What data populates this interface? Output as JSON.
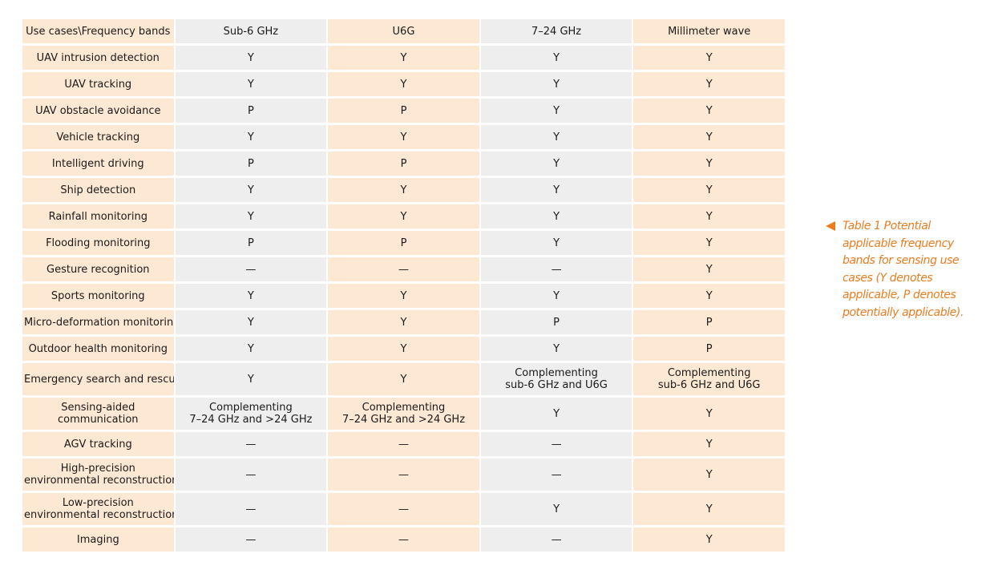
{
  "table": {
    "header": [
      "Use cases\\Frequency bands",
      "Sub-6 GHz",
      "U6G",
      "7–24 GHz",
      "Millimeter wave"
    ],
    "rows": [
      {
        "cells": [
          "UAV intrusion detection",
          "Y",
          "Y",
          "Y",
          "Y"
        ]
      },
      {
        "cells": [
          "UAV tracking",
          "Y",
          "Y",
          "Y",
          "Y"
        ]
      },
      {
        "cells": [
          "UAV obstacle avoidance",
          "P",
          "P",
          "Y",
          "Y"
        ]
      },
      {
        "cells": [
          "Vehicle tracking",
          "Y",
          "Y",
          "Y",
          "Y"
        ]
      },
      {
        "cells": [
          "Intelligent driving",
          "P",
          "P",
          "Y",
          "Y"
        ]
      },
      {
        "cells": [
          "Ship detection",
          "Y",
          "Y",
          "Y",
          "Y"
        ]
      },
      {
        "cells": [
          "Rainfall monitoring",
          "Y",
          "Y",
          "Y",
          "Y"
        ]
      },
      {
        "cells": [
          "Flooding monitoring",
          "P",
          "P",
          "Y",
          "Y"
        ]
      },
      {
        "cells": [
          "Gesture recognition",
          "—",
          "—",
          "—",
          "Y"
        ]
      },
      {
        "cells": [
          "Sports monitoring",
          "Y",
          "Y",
          "Y",
          "Y"
        ]
      },
      {
        "cells": [
          "Micro-deformation monitoring",
          "Y",
          "Y",
          "P",
          "P"
        ]
      },
      {
        "cells": [
          "Outdoor health monitoring",
          "Y",
          "Y",
          "Y",
          "P"
        ]
      },
      {
        "cells": [
          "Emergency search and rescue",
          "Y",
          "Y",
          "Complementing\nsub-6 GHz and U6G",
          "Complementing\nsub-6 GHz and U6G"
        ]
      },
      {
        "cells": [
          "Sensing-aided\ncommunication",
          "Complementing\n7–24 GHz and >24 GHz",
          "Complementing\n7–24 GHz and >24 GHz",
          "Y",
          "Y"
        ]
      },
      {
        "cells": [
          "AGV tracking",
          "—",
          "—",
          "—",
          "Y"
        ]
      },
      {
        "cells": [
          "High-precision\nenvironmental reconstruction",
          "—",
          "—",
          "—",
          "Y"
        ]
      },
      {
        "cells": [
          "Low-precision\nenvironmental reconstruction",
          "—",
          "—",
          "Y",
          "Y"
        ]
      },
      {
        "cells": [
          "Imaging",
          "—",
          "—",
          "—",
          "Y"
        ]
      }
    ]
  },
  "caption": {
    "text": "Table 1 Potential applicable frequency bands for sensing use cases (Y denotes applicable, P denotes potentially applicable).",
    "icon": "left-triangle-icon"
  },
  "colors": {
    "accent": "#ea7c1f",
    "peach_column": "#fde8d4",
    "gray_column": "#eeeeee"
  }
}
